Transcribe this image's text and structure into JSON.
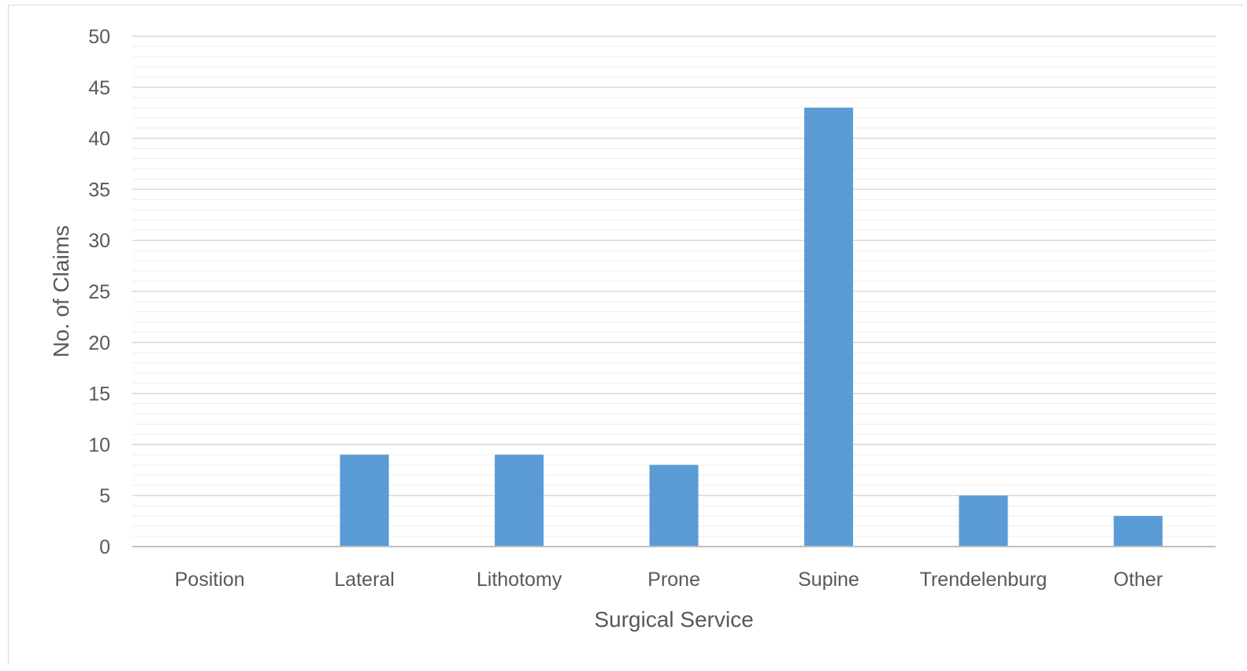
{
  "chart_data": {
    "type": "bar",
    "title": "",
    "xlabel": "Surgical Service",
    "ylabel": "No. of Claims",
    "categories": [
      "Position",
      "Lateral",
      "Lithotomy",
      "Prone",
      "Supine",
      "Trendelenburg",
      "Other"
    ],
    "values": [
      0,
      9,
      9,
      8,
      43,
      5,
      3
    ],
    "ylim": [
      0,
      50
    ],
    "yticks": [
      "0",
      "5",
      "10",
      "15",
      "20",
      "25",
      "30",
      "35",
      "40",
      "45",
      "50"
    ],
    "grid": true,
    "minor_grid": true,
    "legend": "none",
    "colors": {
      "bar": "#5b9bd5",
      "major_grid": "#d9d9d9",
      "minor_grid": "#ededed",
      "axis": "#bfbfbf",
      "text": "#595959"
    }
  }
}
